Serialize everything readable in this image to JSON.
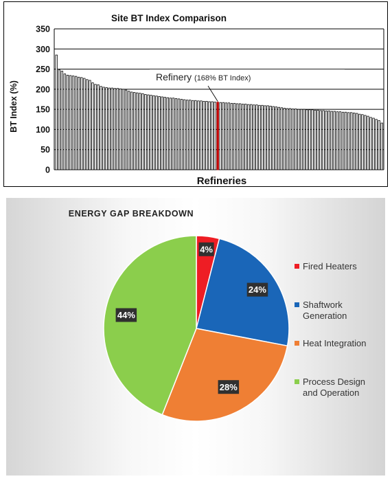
{
  "chart_data": [
    {
      "type": "bar",
      "title": "Site BT Index Comparison",
      "xlabel": "Refineries",
      "ylabel": "BT Index (%)",
      "ylim": [
        0,
        350
      ],
      "yticks": [
        "0",
        "50",
        "100",
        "150",
        "200",
        "250",
        "300",
        "350"
      ],
      "grid": true,
      "bar_color": "#ffffff",
      "highlight_color": "#c00000",
      "highlight_index": 58,
      "annotation": {
        "label": "Refinery",
        "detail": "(168% BT Index)"
      },
      "values": [
        285,
        248,
        245,
        238,
        235,
        234,
        233,
        232,
        230,
        229,
        227,
        224,
        222,
        216,
        212,
        211,
        207,
        205,
        204,
        203,
        203,
        202,
        202,
        201,
        200,
        198,
        195,
        193,
        192,
        191,
        190,
        189,
        187,
        186,
        185,
        184,
        183,
        182,
        181,
        180,
        179,
        178,
        178,
        177,
        176,
        175,
        174,
        173,
        173,
        172,
        172,
        171,
        171,
        170,
        170,
        169,
        169,
        168,
        168,
        167,
        167,
        166,
        166,
        165,
        165,
        164,
        164,
        163,
        163,
        162,
        162,
        161,
        161,
        160,
        160,
        159,
        159,
        158,
        157,
        156,
        155,
        154,
        153,
        152,
        152,
        151,
        151,
        150,
        150,
        150,
        149,
        149,
        149,
        148,
        148,
        147,
        147,
        146,
        146,
        145,
        145,
        144,
        144,
        143,
        143,
        142,
        142,
        141,
        140,
        138,
        137,
        135,
        133,
        130,
        128,
        125,
        122,
        116
      ]
    },
    {
      "type": "pie",
      "title": "ENERGY GAP BREAKDOWN",
      "slices": [
        {
          "name": "Fired Heaters",
          "value": 4,
          "label": "4%",
          "color": "#ee1d24"
        },
        {
          "name": "Shaftwork Generation",
          "value": 24,
          "label": "24%",
          "color": "#1a66b8"
        },
        {
          "name": "Heat Integration",
          "value": 28,
          "label": "28%",
          "color": "#ef7f34"
        },
        {
          "name": "Process Design and Operation",
          "value": 44,
          "label": "44%",
          "color": "#8bce4c"
        }
      ],
      "legend": [
        {
          "lines": [
            "Fired Heaters"
          ],
          "color": "#ee1d24"
        },
        {
          "lines": [
            "Shaftwork",
            "Generation"
          ],
          "color": "#1a66b8"
        },
        {
          "lines": [
            "Heat Integration"
          ],
          "color": "#ef7f34"
        },
        {
          "lines": [
            "Process Design",
            "and Operation"
          ],
          "color": "#8bce4c"
        }
      ],
      "legend_placement": "right"
    }
  ]
}
